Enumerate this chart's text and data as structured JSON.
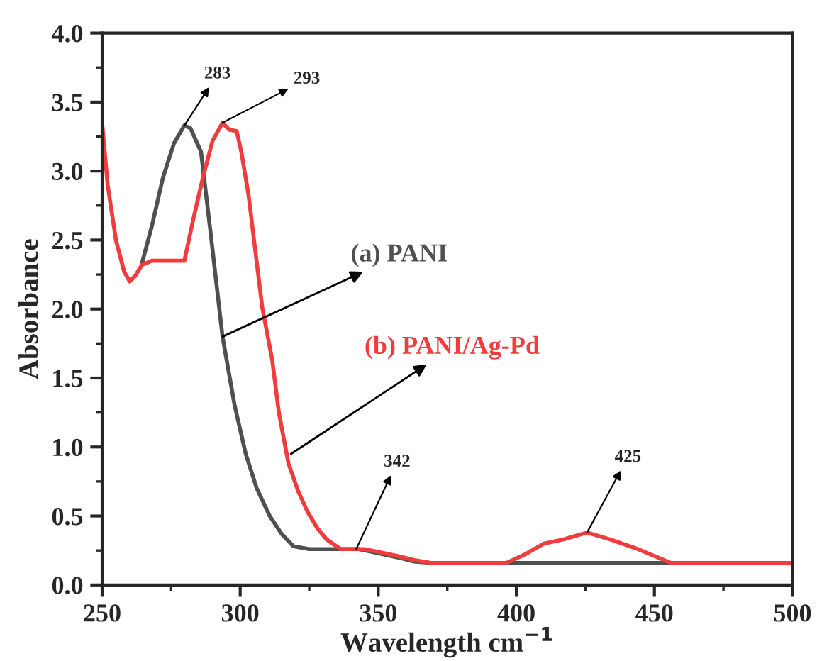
{
  "chart_data": {
    "type": "line",
    "xlabel": "Wavelength cm$^{−1}$",
    "ylabel": "Absorbance",
    "xlim": [
      250,
      500
    ],
    "xticks": [
      250,
      300,
      350,
      400,
      450,
      500
    ],
    "ylim": [
      0,
      4.0
    ],
    "yticks": [
      {
        "value": 0,
        "label": "0.0"
      },
      0.5,
      {
        "value": 1,
        "label": "1.0"
      },
      1.5,
      {
        "value": 2,
        "label": "2.0"
      },
      2.5,
      {
        "value": 3,
        "label": "3.0"
      },
      3.5,
      {
        "value": 4,
        "label": "4.0"
      }
    ],
    "grid": false,
    "legend": false,
    "marker": "none",
    "line_style": "solid",
    "series": [
      {
        "name": "(a) PANI",
        "color": "#505050",
        "x": [
          264.4,
          268,
          272,
          276,
          279.8,
          282,
          285.8,
          289,
          293.6,
          298,
          302,
          306,
          310.7,
          315,
          319.3,
          325,
          331,
          343,
          350,
          357,
          363,
          369,
          400,
          430,
          457,
          500
        ],
        "values": [
          2.33,
          2.6,
          2.95,
          3.2,
          3.33,
          3.31,
          3.14,
          2.6,
          1.8,
          1.3,
          0.95,
          0.7,
          0.5,
          0.37,
          0.28,
          0.26,
          0.26,
          0.26,
          0.23,
          0.2,
          0.17,
          0.16,
          0.16,
          0.16,
          0.16,
          0.16
        ]
      },
      {
        "name": "(b) PANI/Ag-Pd",
        "color": "#f03c3c",
        "x": [
          250,
          252,
          255,
          258,
          260,
          262,
          264.4,
          268,
          275,
          279.8,
          283,
          286.7,
          290,
          293.6,
          296,
          298.7,
          300.4,
          303,
          305,
          308,
          311.6,
          314,
          317.5,
          321,
          324.4,
          328,
          331.3,
          336.4,
          345,
          350,
          357,
          363,
          369,
          380,
          396.4,
          403,
          410,
          417,
          425.6,
          434,
          444,
          450,
          456,
          470,
          500
        ],
        "values": [
          3.35,
          2.9,
          2.5,
          2.27,
          2.2,
          2.24,
          2.32,
          2.35,
          2.35,
          2.35,
          2.65,
          2.97,
          3.22,
          3.35,
          3.3,
          3.29,
          3.14,
          2.83,
          2.5,
          2.01,
          1.63,
          1.25,
          0.88,
          0.68,
          0.53,
          0.41,
          0.33,
          0.26,
          0.26,
          0.24,
          0.21,
          0.18,
          0.16,
          0.16,
          0.16,
          0.22,
          0.3,
          0.33,
          0.38,
          0.33,
          0.26,
          0.21,
          0.16,
          0.16,
          0.16
        ]
      }
    ],
    "annotations": [
      {
        "text": "283",
        "x": 279.8,
        "y": 3.33
      },
      {
        "text": "293",
        "x": 293.6,
        "y": 3.35
      },
      {
        "text": "342",
        "x": 342,
        "y": 0.26
      },
      {
        "text": "425",
        "x": 425.6,
        "y": 0.38
      }
    ]
  }
}
